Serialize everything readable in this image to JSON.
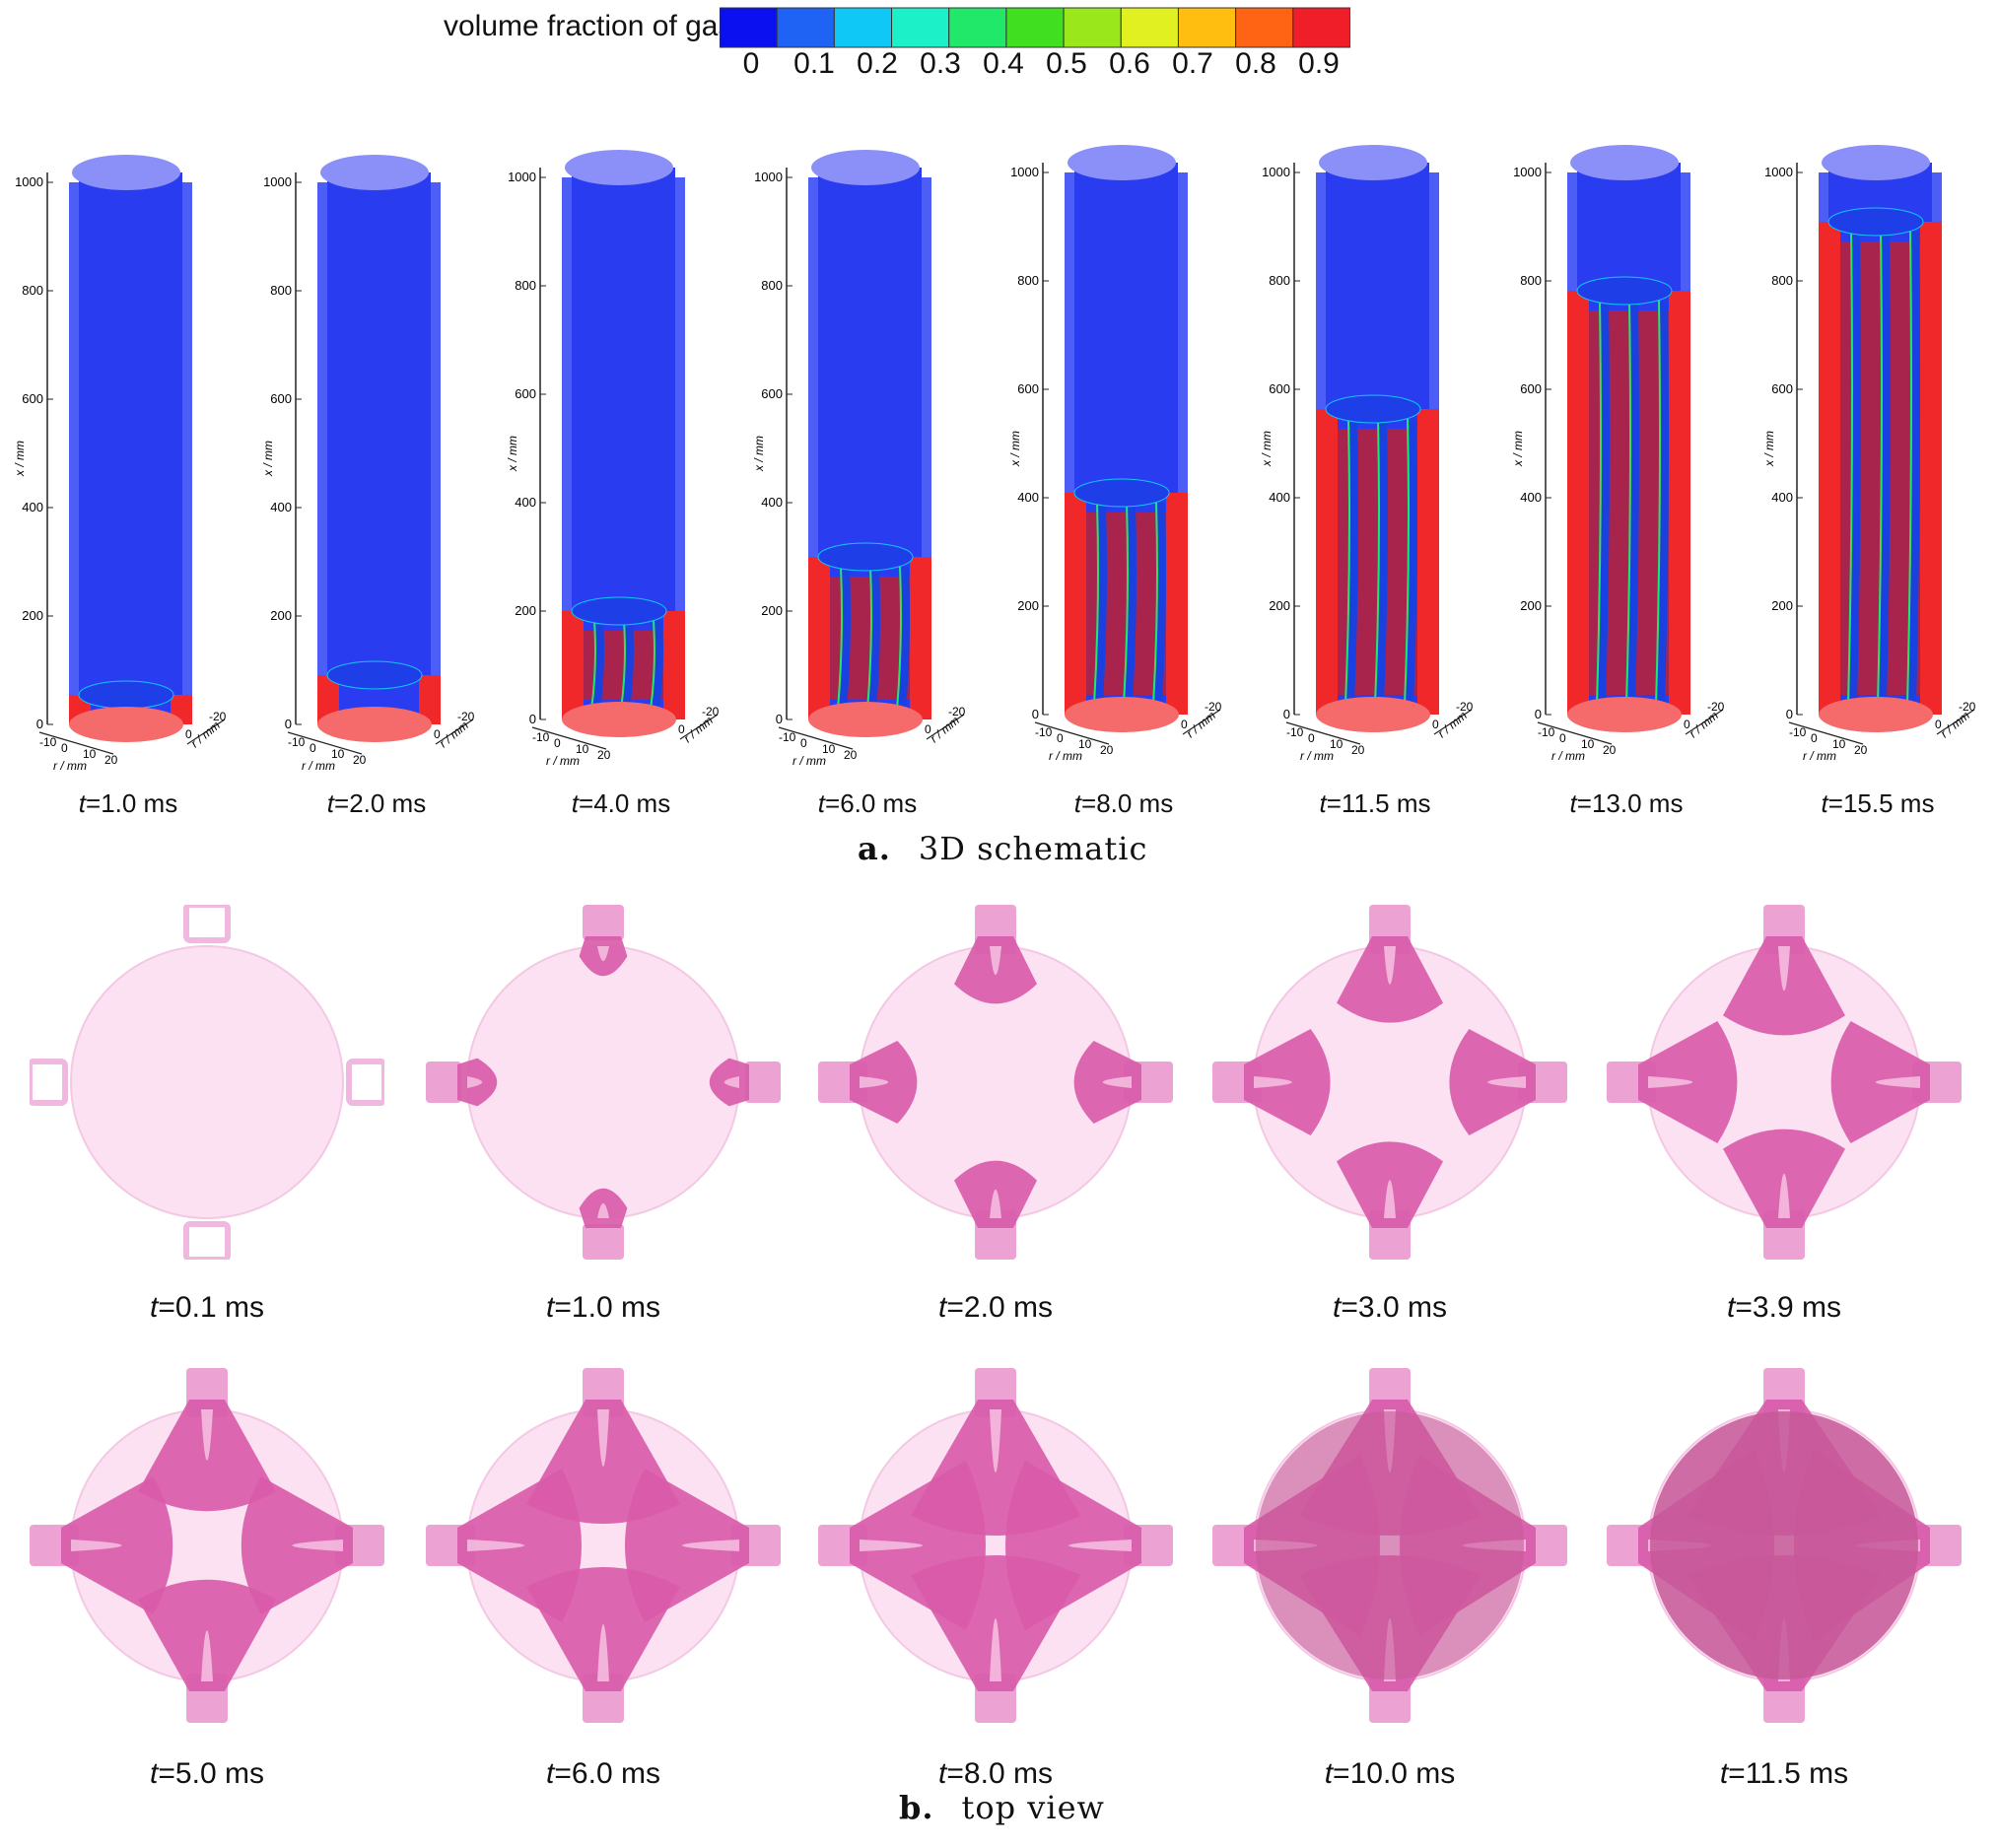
{
  "colorbar": {
    "title": "volume fraction of gas",
    "ticks": [
      "0",
      "0.1",
      "0.2",
      "0.3",
      "0.4",
      "0.5",
      "0.6",
      "0.7",
      "0.8",
      "0.9"
    ],
    "colors": [
      "#0a10f0",
      "#1e63f3",
      "#10c8f5",
      "#1cf0c8",
      "#22e86a",
      "#40e020",
      "#9ae81c",
      "#e0f020",
      "#ffbe10",
      "#ff6414",
      "#f01e28"
    ]
  },
  "figure_a": {
    "caption_letter": "a.",
    "caption_text": "3D schematic",
    "axis": {
      "x_title": "x / mm",
      "r_title": "r / mm",
      "x_ticks": [
        "0",
        "200",
        "400",
        "600",
        "800",
        "1000"
      ],
      "r_ticks_front": [
        "-10",
        "0",
        "10",
        "20"
      ],
      "r_ticks_side": [
        "0",
        "-20"
      ]
    },
    "panels": [
      {
        "time": "1.0 ms",
        "gas_front": 0.06
      },
      {
        "time": "2.0 ms",
        "gas_front": 0.1
      },
      {
        "time": "4.0 ms",
        "gas_front": 0.22
      },
      {
        "time": "6.0 ms",
        "gas_front": 0.33
      },
      {
        "time": "8.0 ms",
        "gas_front": 0.45
      },
      {
        "time": "11.5 ms",
        "gas_front": 0.62
      },
      {
        "time": "13.0 ms",
        "gas_front": 0.86
      },
      {
        "time": "15.5 ms",
        "gas_front": 1.0
      }
    ]
  },
  "figure_b": {
    "caption_letter": "b.",
    "caption_text": "top view",
    "panels": [
      {
        "time": "0.1 ms",
        "fill": 0.02
      },
      {
        "time": "1.0 ms",
        "fill": 0.08
      },
      {
        "time": "2.0 ms",
        "fill": 0.3
      },
      {
        "time": "3.0 ms",
        "fill": 0.45
      },
      {
        "time": "3.9 ms",
        "fill": 0.55
      },
      {
        "time": "5.0 ms",
        "fill": 0.65
      },
      {
        "time": "6.0 ms",
        "fill": 0.75
      },
      {
        "time": "8.0 ms",
        "fill": 0.85
      },
      {
        "time": "10.0 ms",
        "fill": 0.93
      },
      {
        "time": "11.5 ms",
        "fill": 1.0
      }
    ]
  },
  "time_prefix": "t"
}
